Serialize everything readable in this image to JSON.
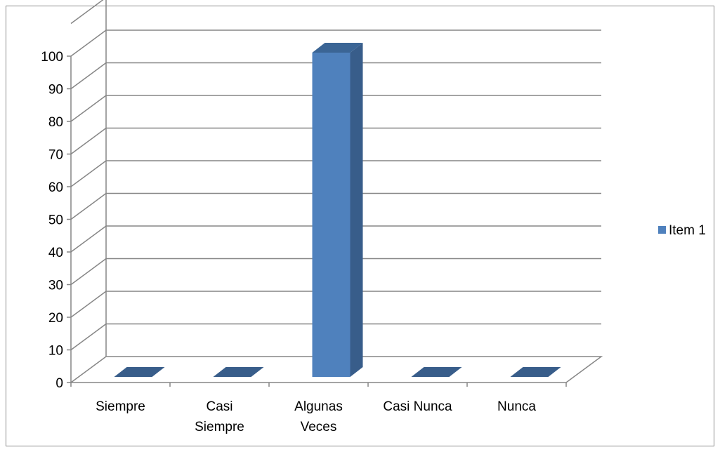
{
  "chart_data": {
    "type": "bar",
    "categories": [
      [
        "Siempre"
      ],
      [
        "Casi",
        "Siempre"
      ],
      [
        "Algunas",
        "Veces"
      ],
      [
        "Casi Nunca"
      ],
      [
        "Nunca"
      ]
    ],
    "series": [
      {
        "name": "Item 1",
        "values": [
          0,
          0,
          100,
          0,
          0
        ],
        "color": "#4F81BD"
      }
    ],
    "ylim": [
      0,
      100
    ],
    "yticks": [
      "0",
      "10",
      "20",
      "30",
      "40",
      "50",
      "60",
      "70",
      "80",
      "90",
      "100"
    ],
    "title": "",
    "xlabel": "",
    "ylabel": "",
    "grid": true,
    "legend_position": "right",
    "style": "3d-column"
  }
}
